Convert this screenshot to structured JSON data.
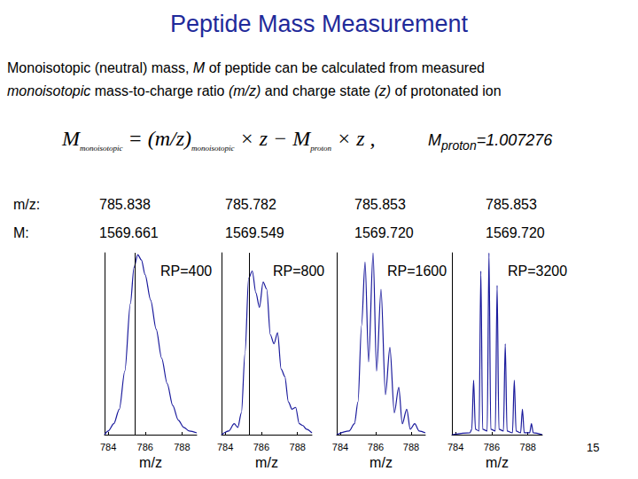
{
  "title": "Peptide Mass Measurement",
  "description": [
    [
      {
        "text": "Monoisotopic (neutral) mass, "
      },
      {
        "text": "M",
        "italic": true
      },
      {
        "text": " of peptide can be calculated from measured"
      }
    ],
    [
      {
        "text": "monoisotopic",
        "italic": true
      },
      {
        "text": " mass-to-charge ratio "
      },
      {
        "text": "(m/z)",
        "italic": true
      },
      {
        "text": " and charge state "
      },
      {
        "text": "(z)",
        "italic": true
      },
      {
        "text": " of protonated ion"
      }
    ]
  ],
  "formula": [
    {
      "text": "M",
      "sub": "monoisotopic"
    },
    {
      "text": " = (m/z)",
      "sub": "monoisotopic"
    },
    {
      "text": " × z − M",
      "sub": "proton"
    },
    {
      "text": " × z ,"
    }
  ],
  "proton_mass": [
    {
      "text": "M",
      "sub": "proton"
    },
    {
      "text": "=1.007276"
    }
  ],
  "table": {
    "rows": [
      [
        "m/z:",
        "785.838",
        "785.782",
        "785.853",
        "785.853"
      ],
      [
        "M:",
        "1569.661",
        "1569.549",
        "1569.720",
        "1569.720"
      ]
    ]
  },
  "page_number": "15",
  "chart_data": [
    {
      "type": "line",
      "title": "RP=400",
      "xlabel": "m/z",
      "x": [
        783.8,
        784.0,
        784.3,
        784.6,
        784.9,
        785.2,
        785.4,
        785.6,
        785.8,
        786.0,
        786.3,
        786.6,
        786.9,
        787.2,
        787.5,
        787.8,
        788.1,
        788.4,
        788.8
      ],
      "values": [
        0,
        2,
        6,
        14,
        35,
        72,
        92,
        99,
        96,
        88,
        74,
        58,
        42,
        28,
        16,
        8,
        4,
        2,
        1
      ],
      "color": "#1a1a9c",
      "xlim": [
        783.8,
        788.8
      ],
      "xticks": [
        784,
        786,
        788
      ],
      "ylim": [
        0,
        100
      ],
      "tick_labels": "x",
      "grid": false,
      "vline": 785.45
    },
    {
      "type": "line",
      "title": "RP=800",
      "xlabel": "m/z",
      "x": [
        783.8,
        784.2,
        784.5,
        784.7,
        784.9,
        785.1,
        785.3,
        785.5,
        785.7,
        785.9,
        786.1,
        786.3,
        786.5,
        786.7,
        786.9,
        787.1,
        787.3,
        787.5,
        787.7,
        787.9,
        788.1,
        788.3,
        788.5,
        788.8
      ],
      "values": [
        0,
        2,
        6,
        4,
        12,
        45,
        86,
        90,
        78,
        70,
        84,
        80,
        55,
        50,
        56,
        36,
        32,
        18,
        14,
        15,
        6,
        5,
        3,
        1
      ],
      "color": "#1a1a9c",
      "xlim": [
        783.8,
        788.8
      ],
      "xticks": [
        784,
        786,
        788
      ],
      "ylim": [
        0,
        100
      ],
      "tick_labels": "x",
      "grid": false,
      "vline": 785.35
    },
    {
      "type": "line",
      "title": "RP=1600",
      "xlabel": "m/z",
      "x": [
        783.8,
        784.5,
        784.8,
        785.0,
        785.2,
        785.4,
        785.6,
        785.85,
        786.05,
        786.3,
        786.55,
        786.8,
        787.05,
        787.3,
        787.5,
        787.75,
        787.95,
        788.2,
        788.45,
        788.8
      ],
      "values": [
        0,
        2,
        6,
        18,
        60,
        95,
        40,
        100,
        35,
        80,
        22,
        48,
        12,
        26,
        6,
        14,
        3,
        6,
        2,
        1
      ],
      "color": "#1a1a9c",
      "xlim": [
        783.8,
        788.8
      ],
      "xticks": [
        784,
        786,
        788
      ],
      "ylim": [
        0,
        100
      ],
      "tick_labels": "x",
      "grid": false
    },
    {
      "type": "line",
      "title": "RP=3200",
      "xlabel": "m/z",
      "x": [
        783.8,
        784.8,
        784.9,
        785.0,
        785.1,
        785.3,
        785.4,
        785.5,
        785.75,
        785.85,
        785.95,
        786.2,
        786.3,
        786.4,
        786.65,
        786.75,
        786.85,
        787.15,
        787.25,
        787.35,
        787.6,
        787.7,
        787.8,
        788.1,
        788.2,
        788.3,
        788.8
      ],
      "values": [
        0,
        1,
        3,
        30,
        3,
        2,
        90,
        3,
        2,
        100,
        3,
        2,
        82,
        3,
        2,
        50,
        2,
        1,
        30,
        2,
        1,
        14,
        1,
        1,
        6,
        1,
        0
      ],
      "color": "#1a1a9c",
      "xlim": [
        783.8,
        788.8
      ],
      "xticks": [
        784,
        786,
        788
      ],
      "ylim": [
        0,
        100
      ],
      "tick_labels": "x",
      "grid": false
    }
  ]
}
